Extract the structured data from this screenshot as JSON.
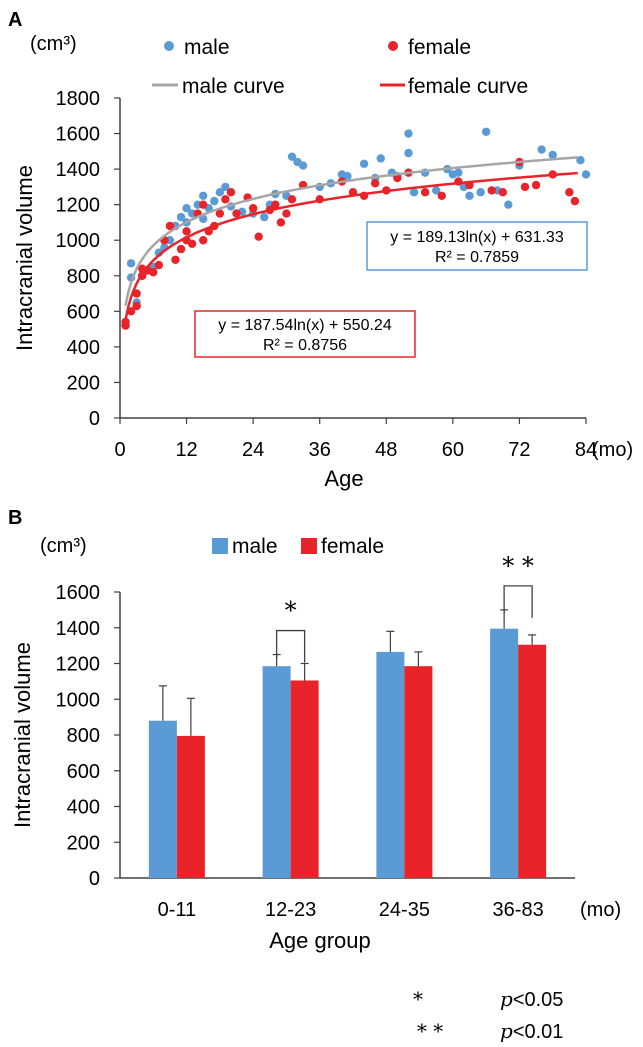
{
  "chart_data": [
    {
      "panel": "A",
      "type": "scatter",
      "unit": "(cm³)",
      "xlabel": "Age",
      "xunit": "(mo)",
      "ylabel": "Intracranial volume",
      "xlim": [
        0,
        84
      ],
      "ylim": [
        0,
        1800
      ],
      "xticks": [
        0,
        12,
        24,
        36,
        48,
        60,
        72,
        84
      ],
      "yticks": [
        0,
        200,
        400,
        600,
        800,
        1000,
        1200,
        1400,
        1600,
        1800
      ],
      "legend_position": "top",
      "series": [
        {
          "name": "male",
          "color": "#5B9BD5",
          "points": [
            [
              1,
              520
            ],
            [
              2,
              870
            ],
            [
              2,
              790
            ],
            [
              3,
              650
            ],
            [
              4,
              800
            ],
            [
              5,
              830
            ],
            [
              6,
              850
            ],
            [
              7,
              930
            ],
            [
              8,
              960
            ],
            [
              9,
              1000
            ],
            [
              10,
              1080
            ],
            [
              11,
              1130
            ],
            [
              12,
              1180
            ],
            [
              12,
              1100
            ],
            [
              13,
              1150
            ],
            [
              14,
              1200
            ],
            [
              15,
              1250
            ],
            [
              15,
              1120
            ],
            [
              16,
              1180
            ],
            [
              17,
              1220
            ],
            [
              18,
              1270
            ],
            [
              19,
              1300
            ],
            [
              20,
              1190
            ],
            [
              22,
              1160
            ],
            [
              24,
              1150
            ],
            [
              26,
              1130
            ],
            [
              27,
              1200
            ],
            [
              28,
              1260
            ],
            [
              30,
              1250
            ],
            [
              31,
              1470
            ],
            [
              32,
              1440
            ],
            [
              33,
              1420
            ],
            [
              36,
              1300
            ],
            [
              38,
              1320
            ],
            [
              40,
              1370
            ],
            [
              41,
              1360
            ],
            [
              44,
              1430
            ],
            [
              46,
              1350
            ],
            [
              47,
              1460
            ],
            [
              49,
              1380
            ],
            [
              50,
              1360
            ],
            [
              52,
              1600
            ],
            [
              52,
              1490
            ],
            [
              53,
              1270
            ],
            [
              55,
              1380
            ],
            [
              57,
              1280
            ],
            [
              59,
              1400
            ],
            [
              60,
              1370
            ],
            [
              61,
              1380
            ],
            [
              62,
              1300
            ],
            [
              63,
              1250
            ],
            [
              65,
              1270
            ],
            [
              66,
              1610
            ],
            [
              68,
              1280
            ],
            [
              70,
              1200
            ],
            [
              72,
              1420
            ],
            [
              76,
              1510
            ],
            [
              78,
              1480
            ],
            [
              83,
              1450
            ],
            [
              84,
              1370
            ]
          ]
        },
        {
          "name": "female",
          "color": "#E8232A",
          "points": [
            [
              1,
              520
            ],
            [
              1,
              540
            ],
            [
              2,
              600
            ],
            [
              3,
              630
            ],
            [
              3,
              700
            ],
            [
              4,
              800
            ],
            [
              4,
              840
            ],
            [
              5,
              830
            ],
            [
              6,
              820
            ],
            [
              7,
              860
            ],
            [
              8,
              1000
            ],
            [
              9,
              1080
            ],
            [
              10,
              890
            ],
            [
              11,
              950
            ],
            [
              12,
              1000
            ],
            [
              12,
              1050
            ],
            [
              13,
              980
            ],
            [
              14,
              1150
            ],
            [
              15,
              1200
            ],
            [
              15,
              1000
            ],
            [
              16,
              1050
            ],
            [
              17,
              1080
            ],
            [
              18,
              1150
            ],
            [
              19,
              1230
            ],
            [
              20,
              1270
            ],
            [
              21,
              1150
            ],
            [
              23,
              1240
            ],
            [
              24,
              1180
            ],
            [
              25,
              1020
            ],
            [
              27,
              1170
            ],
            [
              28,
              1200
            ],
            [
              29,
              1100
            ],
            [
              30,
              1150
            ],
            [
              31,
              1230
            ],
            [
              33,
              1310
            ],
            [
              36,
              1230
            ],
            [
              40,
              1330
            ],
            [
              42,
              1270
            ],
            [
              44,
              1250
            ],
            [
              46,
              1320
            ],
            [
              48,
              1280
            ],
            [
              50,
              1350
            ],
            [
              52,
              1380
            ],
            [
              55,
              1270
            ],
            [
              58,
              1250
            ],
            [
              61,
              1330
            ],
            [
              63,
              1310
            ],
            [
              67,
              1280
            ],
            [
              69,
              1270
            ],
            [
              72,
              1440
            ],
            [
              73,
              1300
            ],
            [
              75,
              1310
            ],
            [
              78,
              1370
            ],
            [
              81,
              1270
            ],
            [
              82,
              1220
            ]
          ]
        },
        {
          "name": "male curve",
          "type": "line",
          "color": "#A6A6A6",
          "fit": {
            "a": 189.13,
            "b": 631.33
          }
        },
        {
          "name": "female curve",
          "type": "line",
          "color": "#E8232A",
          "fit": {
            "a": 187.54,
            "b": 550.24
          }
        }
      ],
      "annotations": {
        "male_eq": "y = 189.13ln(x) + 631.33",
        "male_r2": "R² = 0.7859",
        "male_box_color": "#5B9BD5",
        "female_eq": "y = 187.54ln(x) + 550.24",
        "female_r2": "R² = 0.8756",
        "female_box_color": "#E8232A"
      }
    },
    {
      "panel": "B",
      "type": "bar",
      "unit": "(cm³)",
      "xlabel": "Age group",
      "xunit": "(mo)",
      "ylabel": "Intracranial volume",
      "ylim": [
        0,
        1600
      ],
      "yticks": [
        0,
        200,
        400,
        600,
        800,
        1000,
        1200,
        1400,
        1600
      ],
      "categories": [
        "0-11",
        "12-23",
        "24-35",
        "36-83"
      ],
      "legend_position": "top",
      "series": [
        {
          "name": "male",
          "color": "#5B9BD5",
          "values": [
            880,
            1185,
            1265,
            1395
          ],
          "errors": [
            195,
            65,
            115,
            105
          ]
        },
        {
          "name": "female",
          "color": "#E8232A",
          "values": [
            795,
            1105,
            1185,
            1305
          ],
          "errors": [
            210,
            95,
            80,
            55
          ]
        }
      ],
      "significance": [
        {
          "category": "12-23",
          "marker": "*"
        },
        {
          "category": "36-83",
          "marker": "* *"
        }
      ]
    }
  ],
  "footnote": {
    "rows": [
      {
        "marker": "*",
        "p": "p",
        "rest": "<0.05"
      },
      {
        "marker": "* *",
        "p": "p",
        "rest": "<0.01"
      }
    ]
  }
}
